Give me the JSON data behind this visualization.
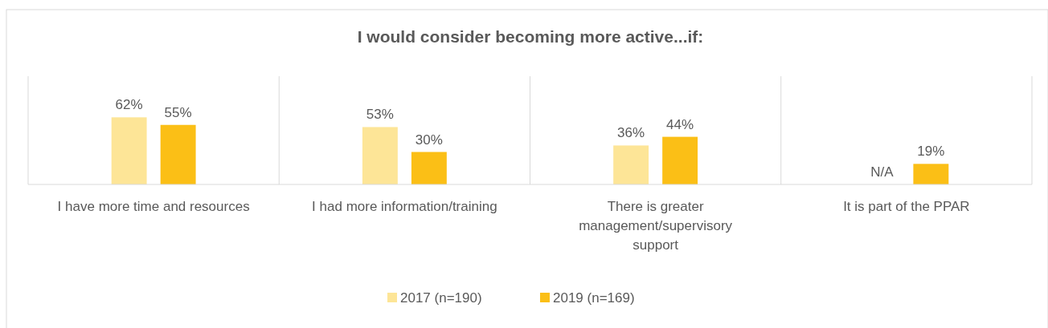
{
  "chart_data": {
    "type": "bar",
    "title": "I would consider becoming more active...if:",
    "categories": [
      "I have more time and resources",
      "I had more information/training",
      "There is greater management/supervisory support",
      "It is part of the PPAR"
    ],
    "series": [
      {
        "name": "2017 (n=190)",
        "color": "#fde597",
        "values": [
          62,
          53,
          36,
          null
        ],
        "value_labels": [
          "62%",
          "53%",
          "36%",
          "N/A"
        ]
      },
      {
        "name": "2019 (n=169)",
        "color": "#fbbf16",
        "values": [
          55,
          30,
          44,
          19
        ],
        "value_labels": [
          "55%",
          "30%",
          "44%",
          "19%"
        ]
      }
    ],
    "ylim": [
      0,
      100
    ],
    "grid": "x",
    "legend": "bottom"
  }
}
